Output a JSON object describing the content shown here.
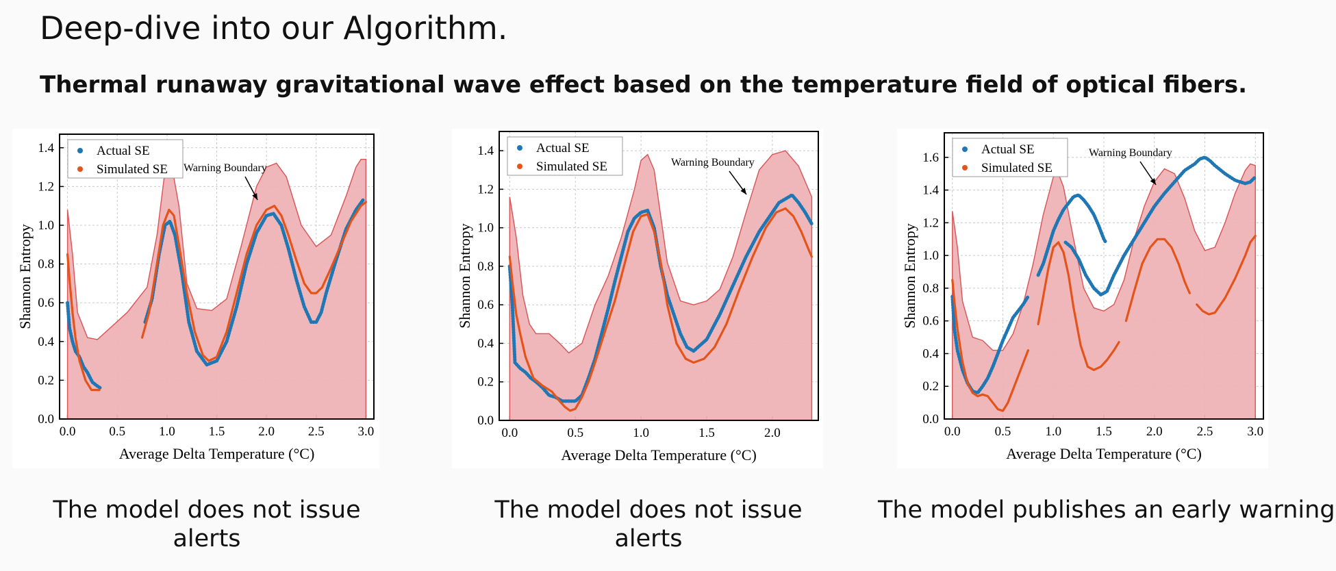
{
  "title": "Deep-dive into our Algorithm.",
  "subtitle": "Thermal runaway gravitational wave effect based on the temperature field of optical fibers.",
  "colors": {
    "actual": "#1f77b4",
    "simulated": "#e4541a",
    "boundary_fill": "#eeb3b5",
    "boundary_line": "#d9595c"
  },
  "captions": [
    "The model does not issue alerts",
    "The model does not issue alerts",
    "The model publishes an early warning"
  ],
  "chart_data": [
    {
      "type": "line",
      "xlabel": "Average Delta Temperature (°C)",
      "ylabel": "Shannon Entropy",
      "xlim": [
        -0.08,
        3.08
      ],
      "ylim": [
        0,
        1.47
      ],
      "xticks": [
        "0.0",
        "0.5",
        "1.0",
        "1.5",
        "2.0",
        "2.5",
        "3.0"
      ],
      "yticks": [
        "0.0",
        "0.2",
        "0.4",
        "0.6",
        "0.8",
        "1.0",
        "1.2",
        "1.4"
      ],
      "legend": [
        "Actual SE",
        "Simulated SE"
      ],
      "annotation": "Warning Boundary",
      "boundary_x": [
        0,
        0.05,
        0.1,
        0.2,
        0.3,
        0.45,
        0.6,
        0.8,
        0.9,
        0.97,
        1.05,
        1.12,
        1.2,
        1.3,
        1.45,
        1.6,
        1.75,
        1.9,
        2.0,
        2.1,
        2.2,
        2.35,
        2.5,
        2.65,
        2.8,
        2.9,
        2.95,
        3.0
      ],
      "boundary_y": [
        1.08,
        0.85,
        0.55,
        0.42,
        0.41,
        0.48,
        0.55,
        0.68,
        0.95,
        1.24,
        1.3,
        1.1,
        0.7,
        0.57,
        0.56,
        0.62,
        0.9,
        1.2,
        1.3,
        1.32,
        1.25,
        1.0,
        0.89,
        0.95,
        1.15,
        1.3,
        1.34,
        1.34
      ],
      "series": [
        {
          "name": "Actual SE",
          "segments": [
            {
              "x": [
                0,
                0.02,
                0.05,
                0.08,
                0.12,
                0.16,
                0.2,
                0.25,
                0.3,
                0.33
              ],
              "y": [
                0.6,
                0.47,
                0.4,
                0.35,
                0.32,
                0.27,
                0.24,
                0.19,
                0.17,
                0.16
              ]
            },
            {
              "x": [
                0.78,
                0.85,
                0.92,
                0.98,
                1.03,
                1.08,
                1.15,
                1.22,
                1.3,
                1.4,
                1.5,
                1.6,
                1.7,
                1.8,
                1.9,
                2.0,
                2.07,
                2.15,
                2.22,
                2.3,
                2.38,
                2.45,
                2.5,
                2.55,
                2.6,
                2.7,
                2.8,
                2.9,
                2.97
              ],
              "y": [
                0.5,
                0.62,
                0.85,
                1.0,
                1.02,
                0.95,
                0.75,
                0.5,
                0.35,
                0.28,
                0.3,
                0.4,
                0.58,
                0.8,
                0.96,
                1.05,
                1.06,
                1.0,
                0.88,
                0.72,
                0.58,
                0.5,
                0.5,
                0.55,
                0.65,
                0.82,
                0.98,
                1.08,
                1.13
              ]
            }
          ]
        },
        {
          "name": "Simulated SE",
          "segments": [
            {
              "x": [
                0,
                0.02,
                0.05,
                0.08,
                0.12,
                0.18,
                0.24,
                0.3,
                0.32
              ],
              "y": [
                0.85,
                0.72,
                0.55,
                0.42,
                0.3,
                0.2,
                0.15,
                0.15,
                0.15
              ]
            },
            {
              "x": [
                0.75,
                0.82,
                0.9,
                0.96,
                1.02,
                1.07,
                1.12,
                1.2,
                1.28,
                1.36,
                1.42,
                1.5,
                1.6,
                1.7,
                1.8,
                1.9,
                2.0,
                2.08,
                2.15,
                2.22,
                2.3,
                2.38,
                2.45,
                2.5,
                2.56,
                2.65,
                2.75,
                2.85,
                2.95,
                3.0
              ],
              "y": [
                0.42,
                0.55,
                0.8,
                1.0,
                1.08,
                1.05,
                0.9,
                0.65,
                0.45,
                0.33,
                0.3,
                0.32,
                0.45,
                0.65,
                0.85,
                1.0,
                1.08,
                1.1,
                1.05,
                0.95,
                0.82,
                0.7,
                0.65,
                0.65,
                0.68,
                0.78,
                0.9,
                1.02,
                1.1,
                1.12
              ]
            }
          ]
        }
      ]
    },
    {
      "type": "line",
      "xlabel": "Average Delta Temperature (°C)",
      "ylabel": "Shannon Entropy",
      "xlim": [
        -0.08,
        2.35
      ],
      "ylim": [
        0,
        1.5
      ],
      "xticks": [
        "0.0",
        "0.5",
        "1.0",
        "1.5",
        "2.0"
      ],
      "yticks": [
        "0.0",
        "0.2",
        "0.4",
        "0.6",
        "0.8",
        "1.0",
        "1.2",
        "1.4"
      ],
      "legend": [
        "Actual SE",
        "Simulated SE"
      ],
      "annotation": "Warning Boundary",
      "boundary_x": [
        0,
        0.05,
        0.1,
        0.15,
        0.2,
        0.3,
        0.38,
        0.45,
        0.55,
        0.65,
        0.75,
        0.85,
        0.95,
        1.0,
        1.05,
        1.1,
        1.2,
        1.3,
        1.4,
        1.5,
        1.6,
        1.7,
        1.8,
        1.9,
        2.0,
        2.1,
        2.2,
        2.3
      ],
      "boundary_y": [
        1.16,
        0.95,
        0.65,
        0.5,
        0.45,
        0.45,
        0.4,
        0.35,
        0.4,
        0.6,
        0.75,
        0.95,
        1.2,
        1.35,
        1.38,
        1.3,
        0.82,
        0.62,
        0.6,
        0.62,
        0.68,
        0.85,
        1.08,
        1.3,
        1.38,
        1.4,
        1.32,
        1.16
      ],
      "series": [
        {
          "name": "Actual SE",
          "segments": [
            {
              "x": [
                0,
                0.02,
                0.04,
                0.08,
                0.12,
                0.16,
                0.2,
                0.25,
                0.3,
                0.35,
                0.4,
                0.45,
                0.5,
                0.55,
                0.6,
                0.65,
                0.7,
                0.75,
                0.8,
                0.85,
                0.9,
                0.95,
                1.0,
                1.05,
                1.1,
                1.15,
                1.2,
                1.25,
                1.3,
                1.35,
                1.4,
                1.5,
                1.6,
                1.7,
                1.8,
                1.9,
                2.0,
                2.05,
                2.1,
                2.15,
                2.2,
                2.25,
                2.3
              ],
              "y": [
                0.8,
                0.6,
                0.3,
                0.27,
                0.25,
                0.22,
                0.2,
                0.17,
                0.13,
                0.12,
                0.1,
                0.1,
                0.1,
                0.13,
                0.22,
                0.32,
                0.45,
                0.58,
                0.72,
                0.85,
                0.98,
                1.05,
                1.08,
                1.09,
                1.0,
                0.8,
                0.65,
                0.55,
                0.45,
                0.38,
                0.36,
                0.42,
                0.55,
                0.7,
                0.85,
                0.98,
                1.08,
                1.13,
                1.15,
                1.17,
                1.13,
                1.08,
                1.02
              ]
            }
          ]
        },
        {
          "name": "Simulated SE",
          "segments": [
            {
              "x": [
                0,
                0.02,
                0.05,
                0.08,
                0.12,
                0.18,
                0.25,
                0.32,
                0.38,
                0.42,
                0.46,
                0.5,
                0.55,
                0.6,
                0.65,
                0.72,
                0.8,
                0.87,
                0.94,
                1.0,
                1.05,
                1.1,
                1.15,
                1.2,
                1.27,
                1.34,
                1.4,
                1.48,
                1.56,
                1.65,
                1.75,
                1.85,
                1.95,
                2.03,
                2.1,
                2.16,
                2.22,
                2.28,
                2.3
              ],
              "y": [
                0.85,
                0.72,
                0.55,
                0.45,
                0.33,
                0.22,
                0.18,
                0.15,
                0.1,
                0.07,
                0.05,
                0.06,
                0.12,
                0.2,
                0.3,
                0.45,
                0.62,
                0.8,
                0.98,
                1.06,
                1.07,
                0.98,
                0.82,
                0.6,
                0.4,
                0.32,
                0.3,
                0.32,
                0.38,
                0.5,
                0.68,
                0.85,
                1.0,
                1.08,
                1.1,
                1.06,
                0.98,
                0.88,
                0.85
              ]
            }
          ]
        }
      ]
    },
    {
      "type": "line",
      "xlabel": "Average Delta Temperature (°C)",
      "ylabel": "Shannon Entropy",
      "xlim": [
        -0.08,
        3.08
      ],
      "ylim": [
        0,
        1.75
      ],
      "xticks": [
        "0.0",
        "0.5",
        "1.0",
        "1.5",
        "2.0",
        "2.5",
        "3.0"
      ],
      "yticks": [
        "0.0",
        "0.2",
        "0.4",
        "0.6",
        "0.8",
        "1.0",
        "1.2",
        "1.4",
        "1.6"
      ],
      "legend": [
        "Actual SE",
        "Simulated SE"
      ],
      "annotation": "Warning Boundary",
      "boundary_x": [
        0,
        0.05,
        0.1,
        0.2,
        0.3,
        0.4,
        0.5,
        0.6,
        0.7,
        0.8,
        0.9,
        1.0,
        1.05,
        1.1,
        1.2,
        1.3,
        1.4,
        1.5,
        1.6,
        1.7,
        1.8,
        1.9,
        2.0,
        2.1,
        2.2,
        2.3,
        2.4,
        2.5,
        2.6,
        2.7,
        2.8,
        2.9,
        2.95,
        3.0
      ],
      "boundary_y": [
        1.27,
        1.05,
        0.72,
        0.5,
        0.48,
        0.42,
        0.42,
        0.52,
        0.7,
        0.95,
        1.25,
        1.48,
        1.5,
        1.42,
        1.1,
        0.8,
        0.68,
        0.66,
        0.7,
        0.85,
        1.1,
        1.3,
        1.45,
        1.53,
        1.5,
        1.35,
        1.15,
        1.03,
        1.05,
        1.2,
        1.38,
        1.52,
        1.56,
        1.55
      ],
      "series": [
        {
          "name": "Actual SE",
          "segments": [
            {
              "x": [
                0,
                0.02,
                0.05,
                0.1,
                0.15,
                0.2,
                0.25,
                0.3,
                0.35,
                0.4,
                0.45,
                0.5,
                0.55,
                0.6,
                0.65,
                0.7,
                0.75
              ],
              "y": [
                0.75,
                0.55,
                0.42,
                0.3,
                0.22,
                0.17,
                0.16,
                0.2,
                0.25,
                0.32,
                0.4,
                0.48,
                0.55,
                0.62,
                0.66,
                0.7,
                0.75
              ]
            },
            {
              "x": [
                0.85,
                0.9,
                0.95,
                1.0,
                1.05,
                1.1,
                1.15,
                1.2,
                1.25,
                1.3,
                1.35,
                1.4,
                1.45,
                1.5,
                1.52
              ],
              "y": [
                0.88,
                0.95,
                1.05,
                1.15,
                1.22,
                1.28,
                1.32,
                1.36,
                1.37,
                1.34,
                1.3,
                1.25,
                1.18,
                1.1,
                1.08
              ]
            },
            {
              "x": [
                1.12,
                1.18,
                1.25,
                1.32,
                1.4,
                1.47,
                1.53,
                1.6,
                1.7,
                1.8,
                1.9,
                2.0,
                2.1,
                2.2,
                2.3,
                2.4,
                2.45,
                2.5,
                2.55,
                2.6,
                2.7,
                2.8,
                2.9,
                2.95,
                3.0
              ],
              "y": [
                1.08,
                1.05,
                0.98,
                0.88,
                0.8,
                0.76,
                0.78,
                0.88,
                1.0,
                1.1,
                1.2,
                1.3,
                1.38,
                1.45,
                1.52,
                1.56,
                1.59,
                1.6,
                1.58,
                1.55,
                1.5,
                1.46,
                1.44,
                1.45,
                1.48
              ]
            }
          ]
        },
        {
          "name": "Simulated SE",
          "segments": [
            {
              "x": [
                0,
                0.02,
                0.05,
                0.1,
                0.15,
                0.2,
                0.25,
                0.3,
                0.35,
                0.4,
                0.45,
                0.5,
                0.55,
                0.6,
                0.65,
                0.7,
                0.75
              ],
              "y": [
                0.85,
                0.72,
                0.55,
                0.35,
                0.22,
                0.16,
                0.14,
                0.15,
                0.14,
                0.1,
                0.06,
                0.05,
                0.1,
                0.18,
                0.26,
                0.34,
                0.42
              ]
            },
            {
              "x": [
                0.85,
                0.9,
                0.95,
                1.0,
                1.05,
                1.1,
                1.15,
                1.2,
                1.27,
                1.34,
                1.4,
                1.47,
                1.53,
                1.6,
                1.65
              ],
              "y": [
                0.58,
                0.75,
                0.92,
                1.05,
                1.08,
                1.02,
                0.88,
                0.68,
                0.45,
                0.32,
                0.3,
                0.32,
                0.36,
                0.42,
                0.47
              ]
            },
            {
              "x": [
                1.72,
                1.8,
                1.88,
                1.96,
                2.03,
                2.1,
                2.17,
                2.24,
                2.3,
                2.35
              ],
              "y": [
                0.6,
                0.78,
                0.95,
                1.05,
                1.1,
                1.1,
                1.05,
                0.95,
                0.84,
                0.77
              ]
            },
            {
              "x": [
                2.42,
                2.48,
                2.54,
                2.6,
                2.7,
                2.8,
                2.9,
                2.95,
                3.0
              ],
              "y": [
                0.7,
                0.66,
                0.64,
                0.65,
                0.74,
                0.86,
                1.0,
                1.08,
                1.12
              ]
            }
          ]
        }
      ]
    }
  ]
}
